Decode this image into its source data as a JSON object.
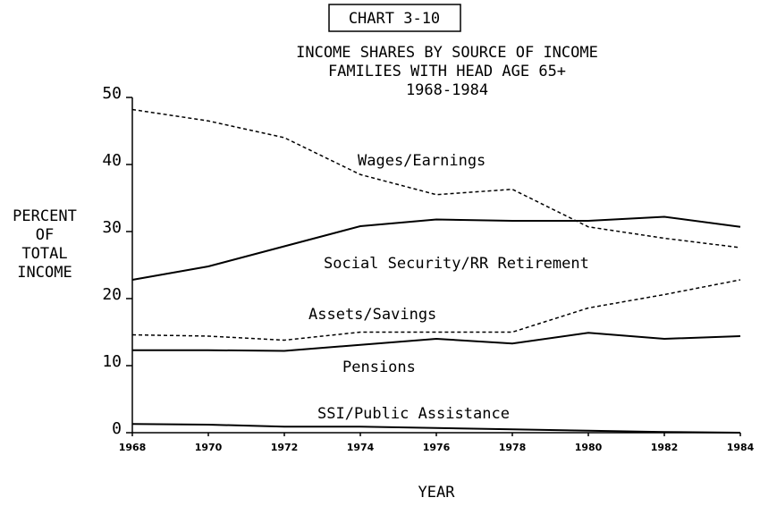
{
  "chart_data": {
    "type": "line",
    "title": "CHART 3-10",
    "subtitle": [
      "INCOME SHARES BY SOURCE OF INCOME",
      "FAMILIES WITH HEAD AGE 65+",
      "1968-1984"
    ],
    "ylabel": [
      "PERCENT",
      "OF",
      "TOTAL",
      "INCOME"
    ],
    "xlabel": "YEAR",
    "x": [
      1968,
      1970,
      1972,
      1974,
      1976,
      1978,
      1980,
      1982,
      1984
    ],
    "xlim": [
      1968,
      1984
    ],
    "xticks": [
      1968,
      1970,
      1972,
      1974,
      1976,
      1978,
      1980,
      1982,
      1984
    ],
    "ylim": [
      0,
      50
    ],
    "yticks": [
      0,
      10,
      20,
      30,
      40,
      50
    ],
    "series": [
      {
        "name": "Wages/Earnings",
        "color": "#000000",
        "dashed": true,
        "values": [
          48.2,
          46.5,
          44,
          38.5,
          35.5,
          36.3,
          30.7,
          29,
          27.6
        ]
      },
      {
        "name": "Social Security/RR Retirement",
        "color": "#000000",
        "dashed": false,
        "values": [
          22.8,
          24.8,
          27.8,
          30.8,
          31.8,
          31.6,
          31.6,
          32.2,
          30.7
        ]
      },
      {
        "name": "Assets/Savings",
        "color": "#000000",
        "dashed": true,
        "values": [
          14.6,
          14.4,
          13.8,
          15,
          15,
          15,
          18.6,
          20.6,
          22.8
        ]
      },
      {
        "name": "Pensions",
        "color": "#000000",
        "dashed": false,
        "values": [
          12.3,
          12.3,
          12.2,
          13.1,
          14,
          13.3,
          14.9,
          14,
          14.4
        ]
      },
      {
        "name": "SSI/Public Assistance",
        "color": "#000000",
        "dashed": false,
        "values": [
          1.3,
          1.2,
          0.9,
          0.9,
          0.7,
          0.5,
          0.3,
          0.1,
          0
        ]
      }
    ]
  }
}
